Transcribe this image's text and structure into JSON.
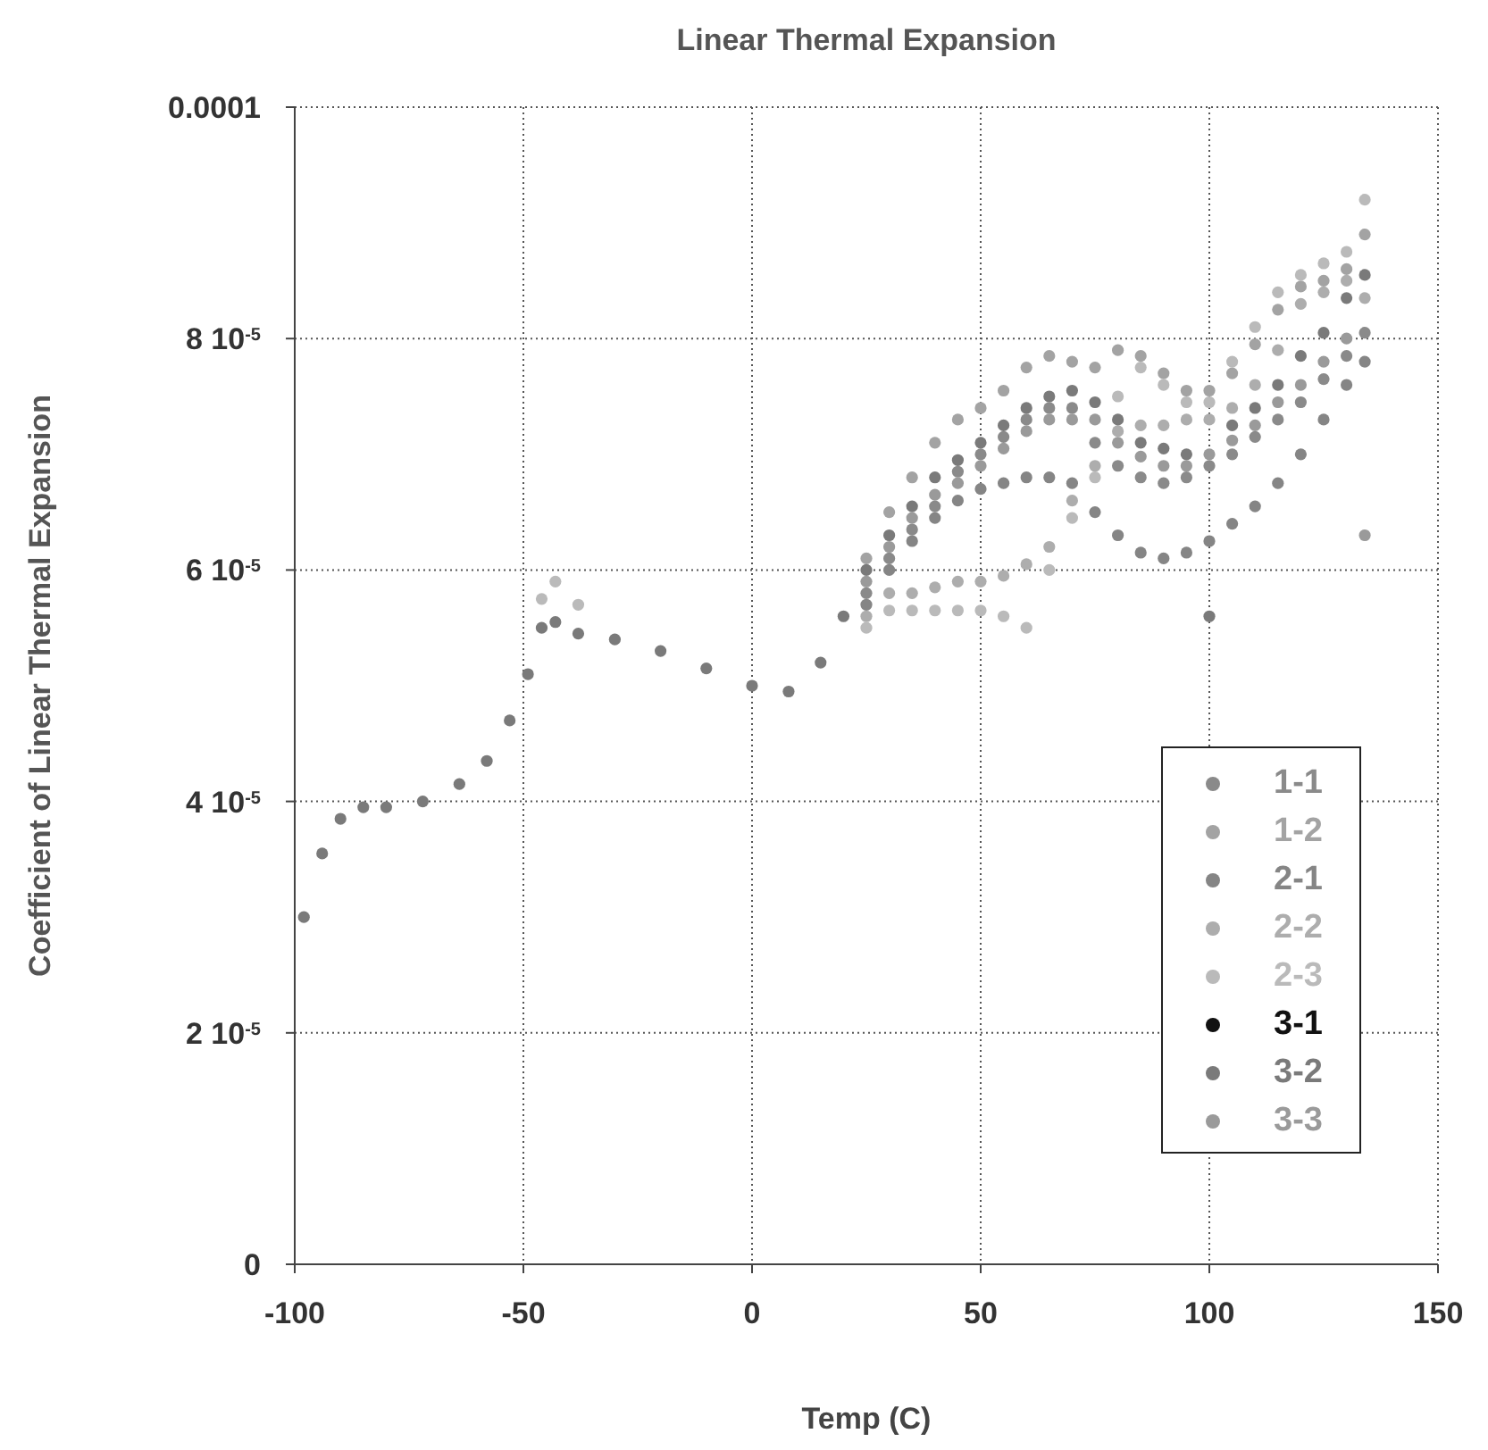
{
  "chart_data": {
    "type": "scatter",
    "title": "Linear Thermal Expansion",
    "xlabel": "Temp (C)",
    "ylabel": "Coefficient of Linear Thermal Expansion",
    "x": [
      -98,
      -94,
      -90,
      -85,
      -80,
      -72,
      -64,
      -58,
      -53,
      -49,
      -46,
      -43,
      -38,
      -30,
      -20,
      -10,
      0,
      8,
      15,
      20,
      25,
      30,
      35,
      40,
      45,
      50,
      55,
      60,
      65,
      70,
      75,
      80,
      85,
      90,
      95,
      100,
      105,
      110,
      115,
      120,
      125,
      130,
      134
    ],
    "series": [
      {
        "name": "1-1",
        "color": "#8a8a8a",
        "values": [
          null,
          null,
          null,
          null,
          null,
          null,
          null,
          null,
          null,
          null,
          null,
          null,
          null,
          null,
          null,
          null,
          null,
          null,
          null,
          null,
          5.8e-05,
          6.1e-05,
          6.35e-05,
          6.55e-05,
          6.85e-05,
          7e-05,
          7.15e-05,
          7.3e-05,
          7.4e-05,
          7.4e-05,
          7.1e-05,
          6.9e-05,
          6.8e-05,
          6.75e-05,
          6.8e-05,
          6.9e-05,
          7e-05,
          7.15e-05,
          7.3e-05,
          7.45e-05,
          7.65e-05,
          7.85e-05,
          8.05e-05
        ]
      },
      {
        "name": "1-2",
        "color": "#a3a3a3",
        "values": [
          null,
          null,
          null,
          null,
          null,
          null,
          null,
          null,
          null,
          null,
          null,
          null,
          null,
          null,
          null,
          null,
          null,
          null,
          null,
          null,
          6.1e-05,
          6.5e-05,
          6.8e-05,
          7.1e-05,
          7.3e-05,
          7.4e-05,
          7.55e-05,
          7.75e-05,
          7.85e-05,
          7.8e-05,
          7.75e-05,
          7.9e-05,
          7.85e-05,
          7.7e-05,
          7.55e-05,
          7.55e-05,
          7.7e-05,
          7.95e-05,
          8.25e-05,
          8.45e-05,
          8.5e-05,
          8.6e-05,
          8.9e-05
        ]
      },
      {
        "name": "2-1",
        "color": "#858585",
        "values": [
          null,
          null,
          null,
          null,
          null,
          null,
          null,
          null,
          null,
          null,
          null,
          null,
          null,
          null,
          null,
          null,
          null,
          null,
          null,
          null,
          5.7e-05,
          6e-05,
          6.25e-05,
          6.45e-05,
          6.6e-05,
          6.7e-05,
          6.75e-05,
          6.8e-05,
          6.8e-05,
          6.75e-05,
          6.5e-05,
          6.3e-05,
          6.15e-05,
          6.1e-05,
          6.15e-05,
          6.25e-05,
          6.4e-05,
          6.55e-05,
          6.75e-05,
          7e-05,
          7.3e-05,
          7.6e-05,
          7.8e-05
        ]
      },
      {
        "name": "2-2",
        "color": "#adadad",
        "values": [
          null,
          null,
          null,
          null,
          null,
          null,
          null,
          null,
          null,
          null,
          null,
          null,
          null,
          null,
          null,
          null,
          null,
          null,
          null,
          null,
          5.6e-05,
          5.8e-05,
          5.8e-05,
          5.85e-05,
          5.9e-05,
          5.9e-05,
          5.95e-05,
          6.05e-05,
          6.2e-05,
          6.6e-05,
          6.9e-05,
          7.2e-05,
          7.25e-05,
          7.25e-05,
          7.3e-05,
          7.3e-05,
          7.4e-05,
          7.6e-05,
          7.9e-05,
          8.3e-05,
          8.4e-05,
          8.5e-05,
          8.35e-05
        ]
      },
      {
        "name": "2-3",
        "color": "#bababa",
        "values": [
          null,
          null,
          null,
          null,
          null,
          null,
          null,
          null,
          null,
          null,
          5.75e-05,
          5.9e-05,
          5.7e-05,
          null,
          null,
          null,
          null,
          null,
          null,
          null,
          5.5e-05,
          5.65e-05,
          5.65e-05,
          5.65e-05,
          5.65e-05,
          5.65e-05,
          5.6e-05,
          5.5e-05,
          6e-05,
          6.45e-05,
          6.8e-05,
          7.5e-05,
          7.75e-05,
          7.6e-05,
          7.45e-05,
          7.45e-05,
          7.8e-05,
          8.1e-05,
          8.4e-05,
          8.55e-05,
          8.65e-05,
          8.75e-05,
          9.2e-05
        ]
      },
      {
        "name": "3-1",
        "color": "#111111",
        "values": [
          null,
          null,
          null,
          null,
          null,
          null,
          null,
          null,
          null,
          null,
          null,
          null,
          null,
          null,
          null,
          null,
          null,
          null,
          null,
          null,
          null,
          null,
          null,
          null,
          null,
          null,
          null,
          null,
          null,
          null,
          null,
          null,
          null,
          null,
          null,
          null,
          null,
          null,
          null,
          null,
          null,
          null,
          null
        ]
      },
      {
        "name": "3-2",
        "color": "#7a7a7a",
        "values": [
          3e-05,
          3.55e-05,
          3.85e-05,
          3.95e-05,
          3.95e-05,
          4e-05,
          4.15e-05,
          4.35e-05,
          4.7e-05,
          5.1e-05,
          5.5e-05,
          5.55e-05,
          5.45e-05,
          5.4e-05,
          5.3e-05,
          5.15e-05,
          5e-05,
          4.95e-05,
          5.2e-05,
          5.6e-05,
          6e-05,
          6.3e-05,
          6.55e-05,
          6.8e-05,
          6.95e-05,
          7.1e-05,
          7.25e-05,
          7.4e-05,
          7.5e-05,
          7.55e-05,
          7.45e-05,
          7.3e-05,
          7.1e-05,
          7.05e-05,
          7e-05,
          5.6e-05,
          7.25e-05,
          7.4e-05,
          7.6e-05,
          7.85e-05,
          8.05e-05,
          8.35e-05,
          8.55e-05
        ]
      },
      {
        "name": "3-3",
        "color": "#9a9a9a",
        "values": [
          null,
          null,
          null,
          null,
          null,
          null,
          null,
          null,
          null,
          null,
          null,
          null,
          null,
          null,
          null,
          null,
          null,
          null,
          null,
          null,
          5.9e-05,
          6.2e-05,
          6.45e-05,
          6.65e-05,
          6.75e-05,
          6.9e-05,
          7.05e-05,
          7.2e-05,
          7.3e-05,
          7.3e-05,
          7.3e-05,
          7.1e-05,
          6.98e-05,
          6.9e-05,
          6.9e-05,
          7e-05,
          7.12e-05,
          7.25e-05,
          7.45e-05,
          7.6e-05,
          7.8e-05,
          8e-05,
          6.3e-05
        ]
      }
    ],
    "xlim": [
      -100,
      150
    ],
    "xticks": [
      -100,
      -50,
      0,
      50,
      100,
      150
    ],
    "ylim": [
      0,
      0.0001
    ],
    "yticks": [
      0,
      {
        "value": 2e-05,
        "label": "2 10$^{-5}$"
      },
      {
        "value": 4e-05,
        "label": "4 10$^{-5}$"
      },
      {
        "value": 6e-05,
        "label": "6 10$^{-5}$"
      },
      {
        "value": 8e-05,
        "label": "8 10$^{-5}$"
      },
      0.0001
    ],
    "grid": true,
    "legend": "bottom right",
    "marker": "circle"
  }
}
